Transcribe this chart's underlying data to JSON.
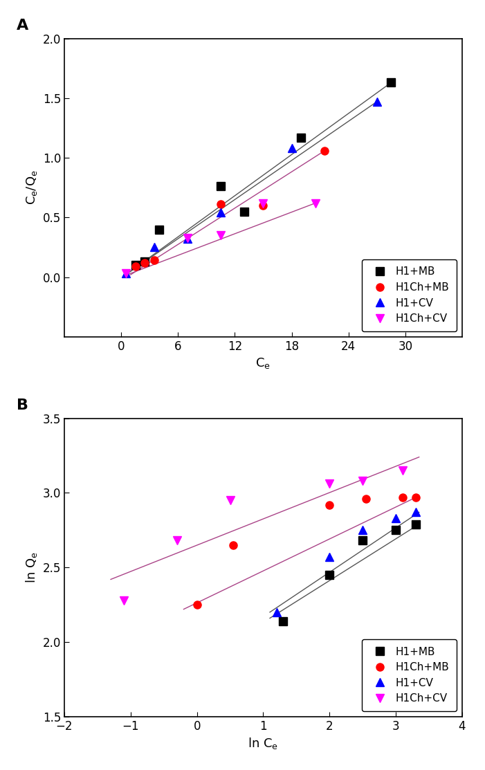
{
  "panel_A": {
    "title": "A",
    "xlabel": "C_e",
    "ylabel": "C_e/Q_e",
    "xlim": [
      -6,
      36
    ],
    "ylim": [
      -0.5,
      2.0
    ],
    "xticks": [
      0,
      6,
      12,
      18,
      24,
      30
    ],
    "yticks": [
      0.0,
      0.5,
      1.0,
      1.5,
      2.0
    ],
    "series": [
      {
        "label": "H1+MB",
        "color": "#000000",
        "marker": "s",
        "x": [
          1.5,
          2.5,
          4.0,
          10.5,
          13.0,
          19.0,
          28.5
        ],
        "y": [
          0.1,
          0.13,
          0.4,
          0.76,
          0.55,
          1.17,
          1.63
        ],
        "fit_color": "#555555",
        "fit_x": [
          1.0,
          28.5
        ],
        "fit_y": [
          0.05,
          1.63
        ]
      },
      {
        "label": "H1Ch+MB",
        "color": "#ff0000",
        "marker": "o",
        "x": [
          1.5,
          2.5,
          3.5,
          10.5,
          15.0,
          21.5
        ],
        "y": [
          0.09,
          0.12,
          0.14,
          0.61,
          0.6,
          1.06
        ],
        "fit_color": "#aa4488",
        "fit_x": [
          1.0,
          21.5
        ],
        "fit_y": [
          0.02,
          1.06
        ]
      },
      {
        "label": "H1+CV",
        "color": "#0000ff",
        "marker": "^",
        "x": [
          0.5,
          3.5,
          7.0,
          10.5,
          18.0,
          27.0
        ],
        "y": [
          0.03,
          0.25,
          0.32,
          0.54,
          1.08,
          1.47
        ],
        "fit_color": "#555555",
        "fit_x": [
          0.3,
          27.0
        ],
        "fit_y": [
          0.01,
          1.47
        ]
      },
      {
        "label": "H1Ch+CV",
        "color": "#ff00ff",
        "marker": "v",
        "x": [
          0.5,
          7.0,
          10.5,
          15.0,
          20.5
        ],
        "y": [
          0.03,
          0.33,
          0.35,
          0.62,
          0.62
        ],
        "fit_color": "#aa4488",
        "fit_x": [
          0.3,
          20.5
        ],
        "fit_y": [
          0.01,
          0.62
        ]
      }
    ]
  },
  "panel_B": {
    "title": "B",
    "xlabel": "ln C_e",
    "ylabel": "ln Q_e",
    "xlim": [
      -2,
      4
    ],
    "ylim": [
      1.5,
      3.5
    ],
    "xticks": [
      -2,
      -1,
      0,
      1,
      2,
      3,
      4
    ],
    "yticks": [
      1.5,
      2.0,
      2.5,
      3.0,
      3.5
    ],
    "series": [
      {
        "label": "H1+MB",
        "color": "#000000",
        "marker": "s",
        "x": [
          1.3,
          2.0,
          2.5,
          3.0,
          3.3
        ],
        "y": [
          2.14,
          2.45,
          2.68,
          2.75,
          2.79
        ],
        "fit_color": "#555555",
        "fit_x": [
          1.1,
          3.35
        ],
        "fit_y": [
          2.16,
          2.79
        ]
      },
      {
        "label": "H1Ch+MB",
        "color": "#ff0000",
        "marker": "o",
        "x": [
          0.0,
          0.55,
          2.0,
          2.55,
          3.1,
          3.3
        ],
        "y": [
          2.25,
          2.65,
          2.92,
          2.96,
          2.97,
          2.97
        ],
        "fit_color": "#aa4488",
        "fit_x": [
          -0.2,
          3.35
        ],
        "fit_y": [
          2.22,
          2.98
        ]
      },
      {
        "label": "H1+CV",
        "color": "#0000ff",
        "marker": "^",
        "x": [
          1.2,
          2.0,
          2.5,
          3.0,
          3.3
        ],
        "y": [
          2.2,
          2.57,
          2.75,
          2.83,
          2.87
        ],
        "fit_color": "#555555",
        "fit_x": [
          1.1,
          3.35
        ],
        "fit_y": [
          2.2,
          2.87
        ]
      },
      {
        "label": "H1Ch+CV",
        "color": "#ff00ff",
        "marker": "v",
        "x": [
          -1.1,
          -0.3,
          0.5,
          2.0,
          2.5,
          3.1
        ],
        "y": [
          2.28,
          2.68,
          2.95,
          3.06,
          3.08,
          3.15
        ],
        "fit_color": "#aa4488",
        "fit_x": [
          -1.3,
          3.35
        ],
        "fit_y": [
          2.42,
          3.24
        ]
      }
    ]
  }
}
